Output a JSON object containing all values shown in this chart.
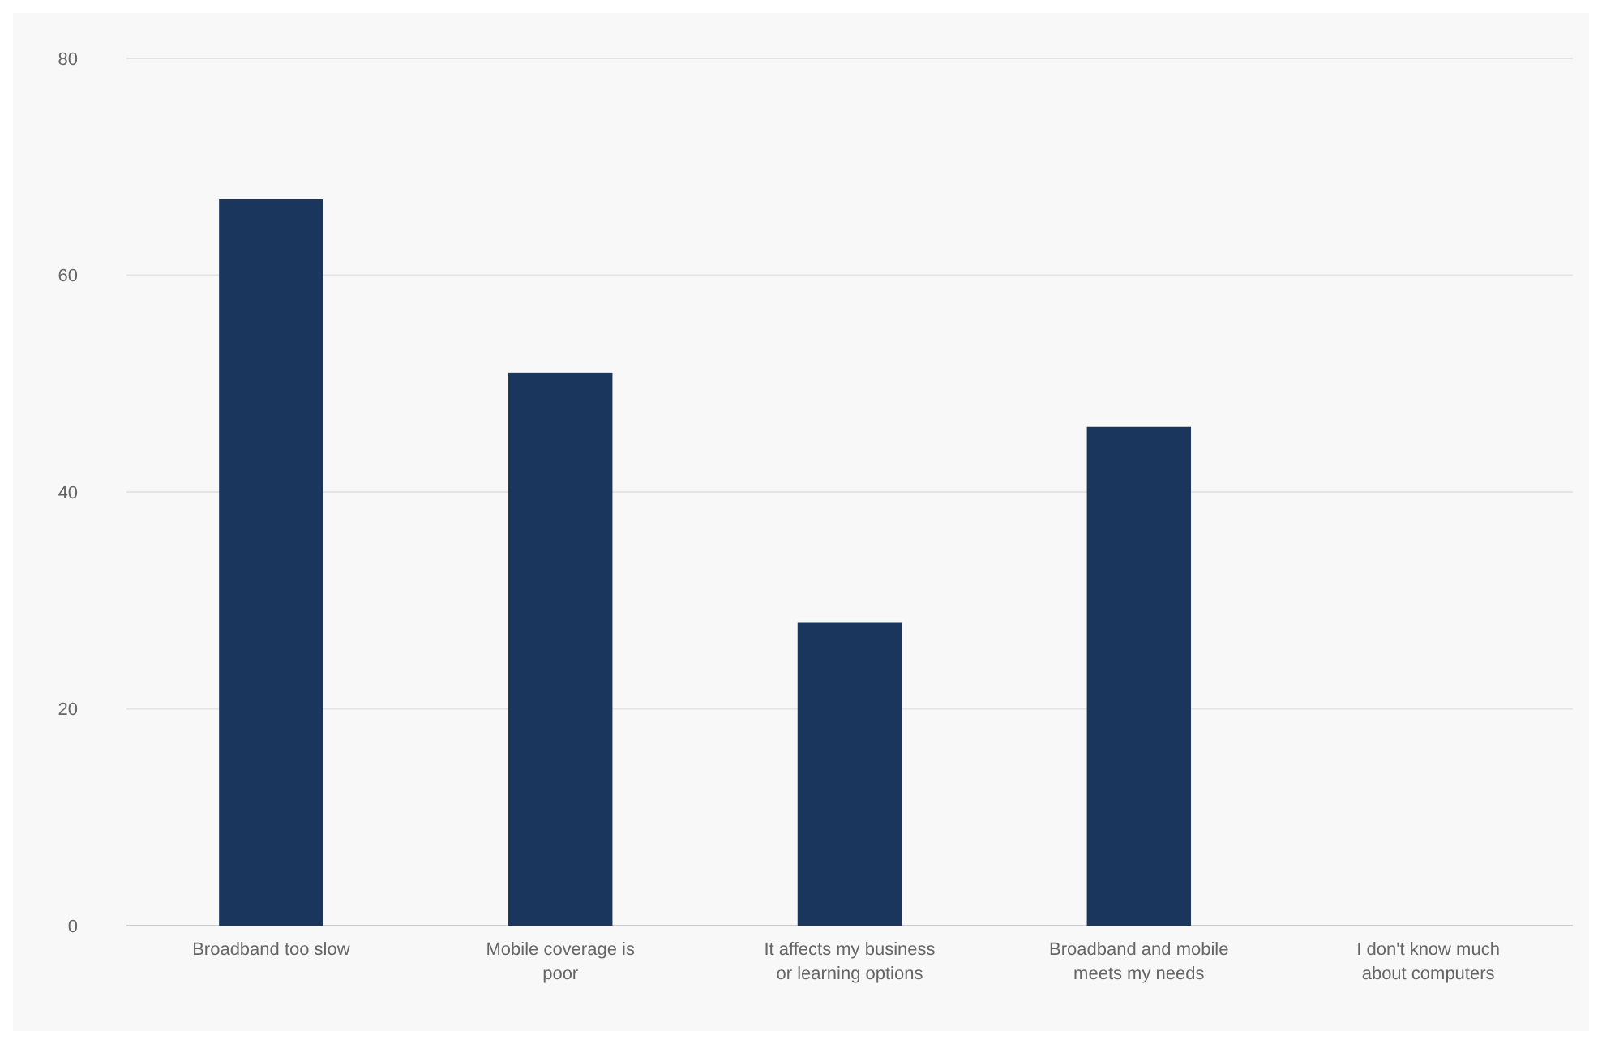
{
  "chart_data": {
    "type": "bar",
    "categories": [
      "Broadband too slow",
      "Mobile coverage is poor",
      "It affects my business or learning options",
      "Broadband and mobile meets my needs",
      "I don't know much about computers"
    ],
    "values": [
      67,
      51,
      28,
      46,
      0
    ],
    "color": "#1b365d",
    "ylim": [
      0,
      80
    ],
    "yticks": [
      0,
      20,
      40,
      60,
      80
    ],
    "grid": "y"
  }
}
